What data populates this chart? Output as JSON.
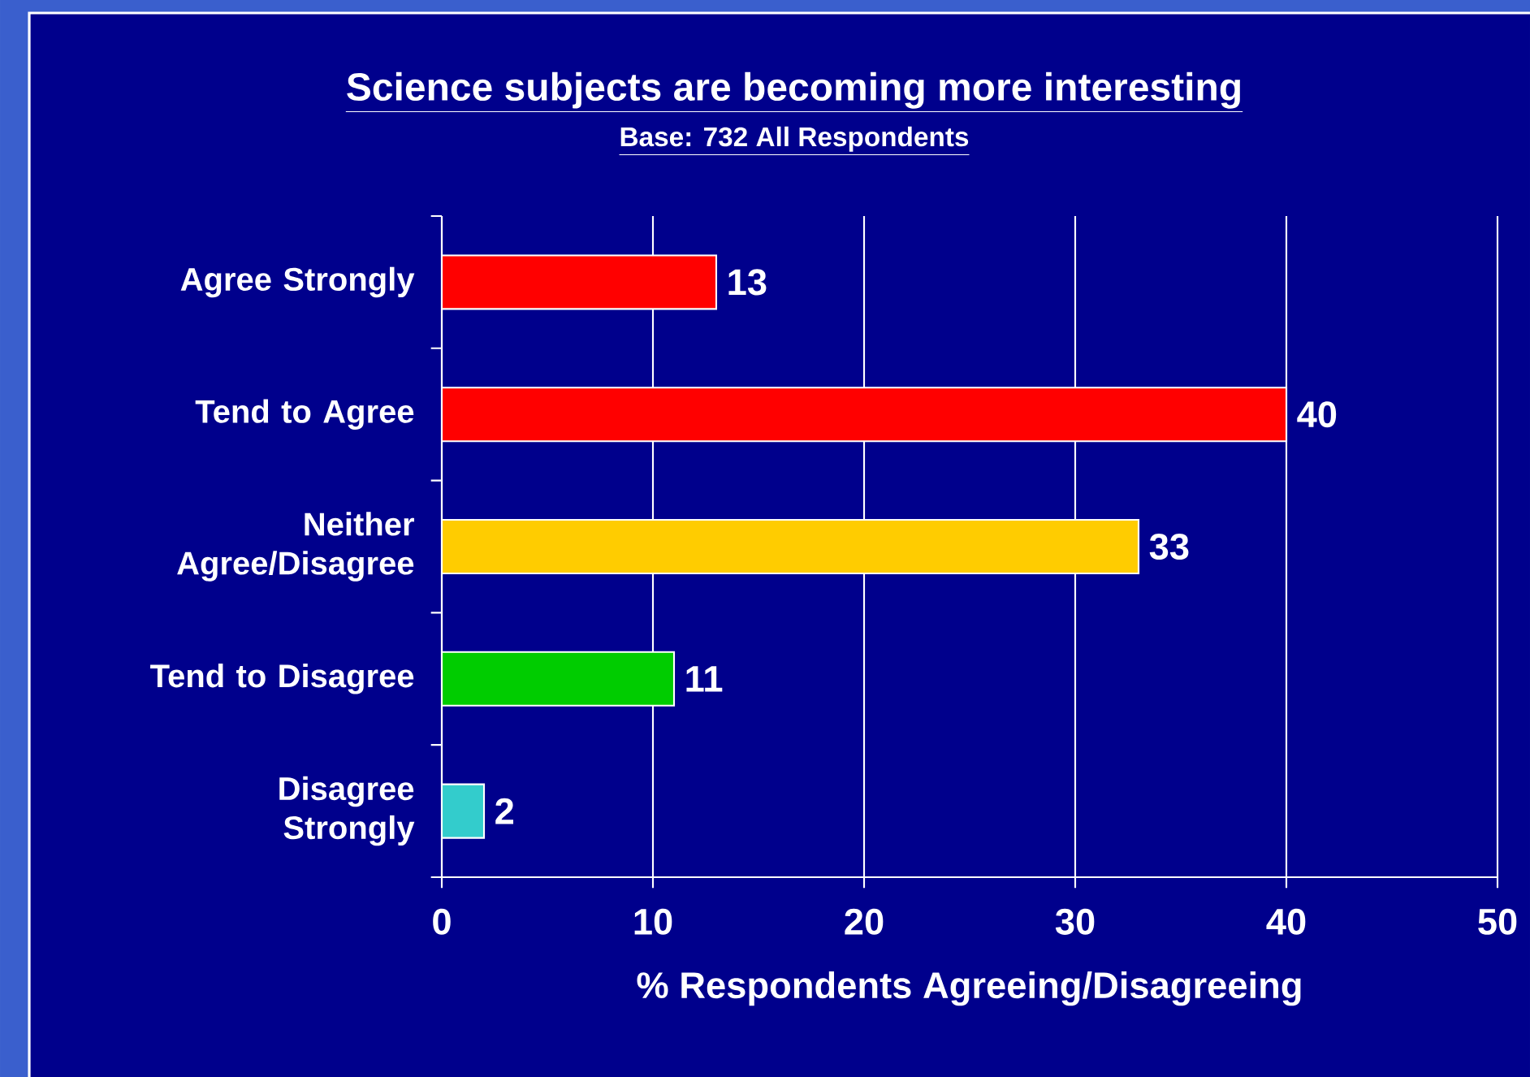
{
  "chart_data": {
    "type": "bar",
    "orientation": "horizontal",
    "title": "Science subjects are becoming more interesting",
    "subtitle": "Base: 732 All Respondents",
    "xlabel": "%  Respondents Agreeing/Disagreeing",
    "categories": [
      "Agree Strongly",
      "Tend to Agree",
      "Neither Agree/Disagree",
      "Tend to Disagree",
      "Disagree Strongly"
    ],
    "values": [
      13,
      40,
      33,
      11,
      2
    ],
    "colors": [
      "#ff0000",
      "#ff0000",
      "#ffcc00",
      "#00cc00",
      "#33cccc"
    ],
    "xlim": [
      0,
      50
    ],
    "xticks": [
      0,
      10,
      20,
      30,
      40,
      50
    ],
    "grid": "x",
    "data_labels": true
  }
}
